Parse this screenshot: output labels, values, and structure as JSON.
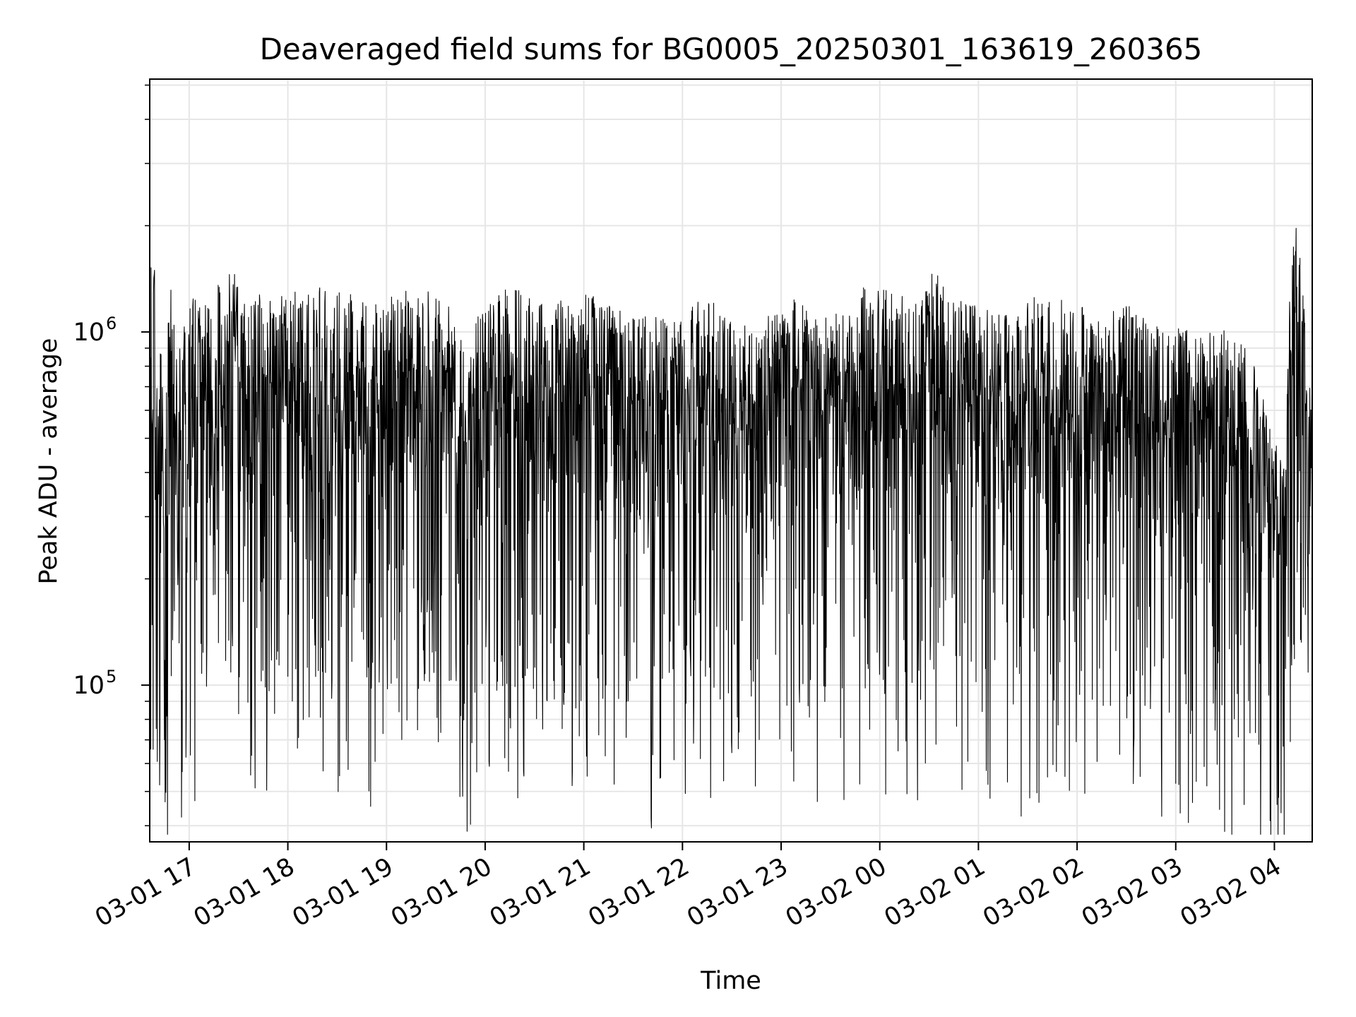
{
  "chart_data": {
    "type": "line",
    "title": "Deaveraged field sums for BG0005_20250301_163619_260365",
    "xlabel": "Time",
    "ylabel": "Peak ADU - average",
    "x_ticks": [
      "03-01 17",
      "03-01 18",
      "03-01 19",
      "03-01 20",
      "03-01 21",
      "03-01 22",
      "03-01 23",
      "03-02 00",
      "03-02 01",
      "03-02 02",
      "03-02 03",
      "03-02 04"
    ],
    "y_scale": "log",
    "y_ticks": [
      {
        "base": "10",
        "exp": "5",
        "value": 100000
      },
      {
        "base": "10",
        "exp": "6",
        "value": 1000000
      }
    ],
    "xlim": [
      "2025-03-01 16:36",
      "2025-03-02 04:23"
    ],
    "ylim": [
      36000,
      5200000
    ],
    "grid": true,
    "line_color": "#000000",
    "series": [
      {
        "x": [
          "2025-03-01 16:36",
          "2025-03-01 16:37",
          "2025-03-01 16:38",
          "2025-03-01 16:39",
          "2025-03-01 16:41",
          "2025-03-01 16:43",
          "2025-03-01 16:45",
          "2025-03-01 16:48",
          "2025-03-01 16:52",
          "2025-03-01 16:57",
          "2025-03-01 17:03",
          "2025-03-01 17:08",
          "2025-03-01 17:15",
          "2025-03-01 17:22",
          "2025-03-01 17:28",
          "2025-03-01 17:31",
          "2025-03-01 17:35",
          "2025-03-01 17:40",
          "2025-03-01 17:45",
          "2025-03-01 17:52",
          "2025-03-01 18:00",
          "2025-03-01 18:10",
          "2025-03-01 18:20",
          "2025-03-01 18:30",
          "2025-03-01 18:45",
          "2025-03-01 18:52",
          "2025-03-01 19:00",
          "2025-03-01 19:15",
          "2025-03-01 19:30",
          "2025-03-01 19:40",
          "2025-03-01 19:46",
          "2025-03-01 19:50",
          "2025-03-01 19:55",
          "2025-03-01 20:02",
          "2025-03-01 20:15",
          "2025-03-01 20:25",
          "2025-03-01 20:38",
          "2025-03-01 20:45",
          "2025-03-01 21:00",
          "2025-03-01 21:15",
          "2025-03-01 21:25",
          "2025-03-01 21:40",
          "2025-03-01 22:00",
          "2025-03-01 22:15",
          "2025-03-01 22:30",
          "2025-03-01 22:46",
          "2025-03-01 23:00",
          "2025-03-01 23:10",
          "2025-03-01 23:30",
          "2025-03-01 23:50",
          "2025-03-02 00:10",
          "2025-03-02 00:25",
          "2025-03-02 00:30",
          "2025-03-02 00:50",
          "2025-03-02 01:00",
          "2025-03-02 01:20",
          "2025-03-02 01:35",
          "2025-03-02 01:45",
          "2025-03-02 02:00",
          "2025-03-02 02:10",
          "2025-03-02 02:30",
          "2025-03-02 02:45",
          "2025-03-02 03:00",
          "2025-03-02 03:15",
          "2025-03-02 03:30",
          "2025-03-02 03:45",
          "2025-03-02 03:55",
          "2025-03-02 04:05",
          "2025-03-02 04:10",
          "2025-03-02 04:14",
          "2025-03-02 04:18",
          "2025-03-02 04:21",
          "2025-03-02 04:23"
        ],
        "y": [
          1700000,
          1600000,
          1700000,
          1500000,
          650000,
          1200000,
          400000,
          1500000,
          900000,
          1100000,
          1300000,
          1200000,
          1400000,
          1300000,
          1800000,
          1300000,
          1200000,
          1300000,
          1300000,
          1200000,
          1350000,
          1300000,
          1400000,
          1300000,
          1350000,
          1200000,
          1300000,
          1350000,
          1300000,
          1150000,
          950000,
          850000,
          1100000,
          1200000,
          1350000,
          1300000,
          1200000,
          1250000,
          1300000,
          1200000,
          1150000,
          1100000,
          1200000,
          1250000,
          1100000,
          1050000,
          1200000,
          1250000,
          1100000,
          1350000,
          1300000,
          1200000,
          1500000,
          1300000,
          1200000,
          1100000,
          1300000,
          1200000,
          1300000,
          1100000,
          1200000,
          1050000,
          1100000,
          1000000,
          1050000,
          900000,
          600000,
          450000,
          1500000,
          2200000,
          1400000,
          700000,
          850000
        ]
      }
    ]
  }
}
